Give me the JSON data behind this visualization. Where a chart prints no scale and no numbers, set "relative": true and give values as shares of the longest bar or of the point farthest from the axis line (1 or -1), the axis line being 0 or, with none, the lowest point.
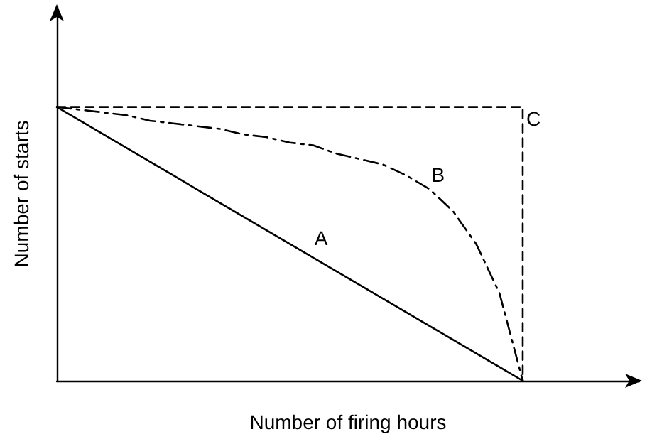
{
  "chart_data": {
    "type": "line",
    "relative": true,
    "xlabel": "Number of firing hours",
    "ylabel": "Number of starts",
    "legend": false,
    "grid": false,
    "marker": "none",
    "categories": [
      null,
      null,
      null,
      null,
      null,
      null,
      null,
      null,
      null,
      null,
      null,
      null,
      null,
      null,
      null,
      null,
      null,
      null,
      null,
      null,
      null,
      null,
      null,
      null,
      null,
      null
    ],
    "series": [
      {
        "name": "A",
        "color": "#000000",
        "line_style": "solid",
        "values": [
          1,
          0.95,
          0.9,
          0.85,
          0.8,
          0.75,
          0.7,
          0.65,
          0.6,
          0.55,
          0.5,
          0.45,
          0.4,
          0.35,
          0.3,
          0.25,
          0.2,
          0.15,
          0.1,
          0.05,
          0,
          null,
          null,
          null,
          null,
          null
        ]
      },
      {
        "name": "B",
        "color": "#000000",
        "line_style": "dashdot",
        "values": [
          1,
          0.99,
          0.98,
          0.97,
          0.95,
          0.94,
          0.93,
          0.92,
          0.9,
          0.89,
          0.87,
          0.86,
          0.83,
          0.81,
          0.79,
          0.75,
          0.7,
          0.62,
          0.5,
          0.32,
          0,
          null,
          null,
          null,
          null,
          null
        ]
      },
      {
        "name": "C",
        "type": "step",
        "color": "#000000",
        "line_style": "dashed",
        "values": [
          1,
          1,
          1,
          1,
          1,
          1,
          1,
          1,
          1,
          1,
          1,
          1,
          1,
          1,
          1,
          1,
          1,
          1,
          1,
          1,
          0,
          null,
          null,
          null,
          null,
          null
        ]
      }
    ]
  }
}
